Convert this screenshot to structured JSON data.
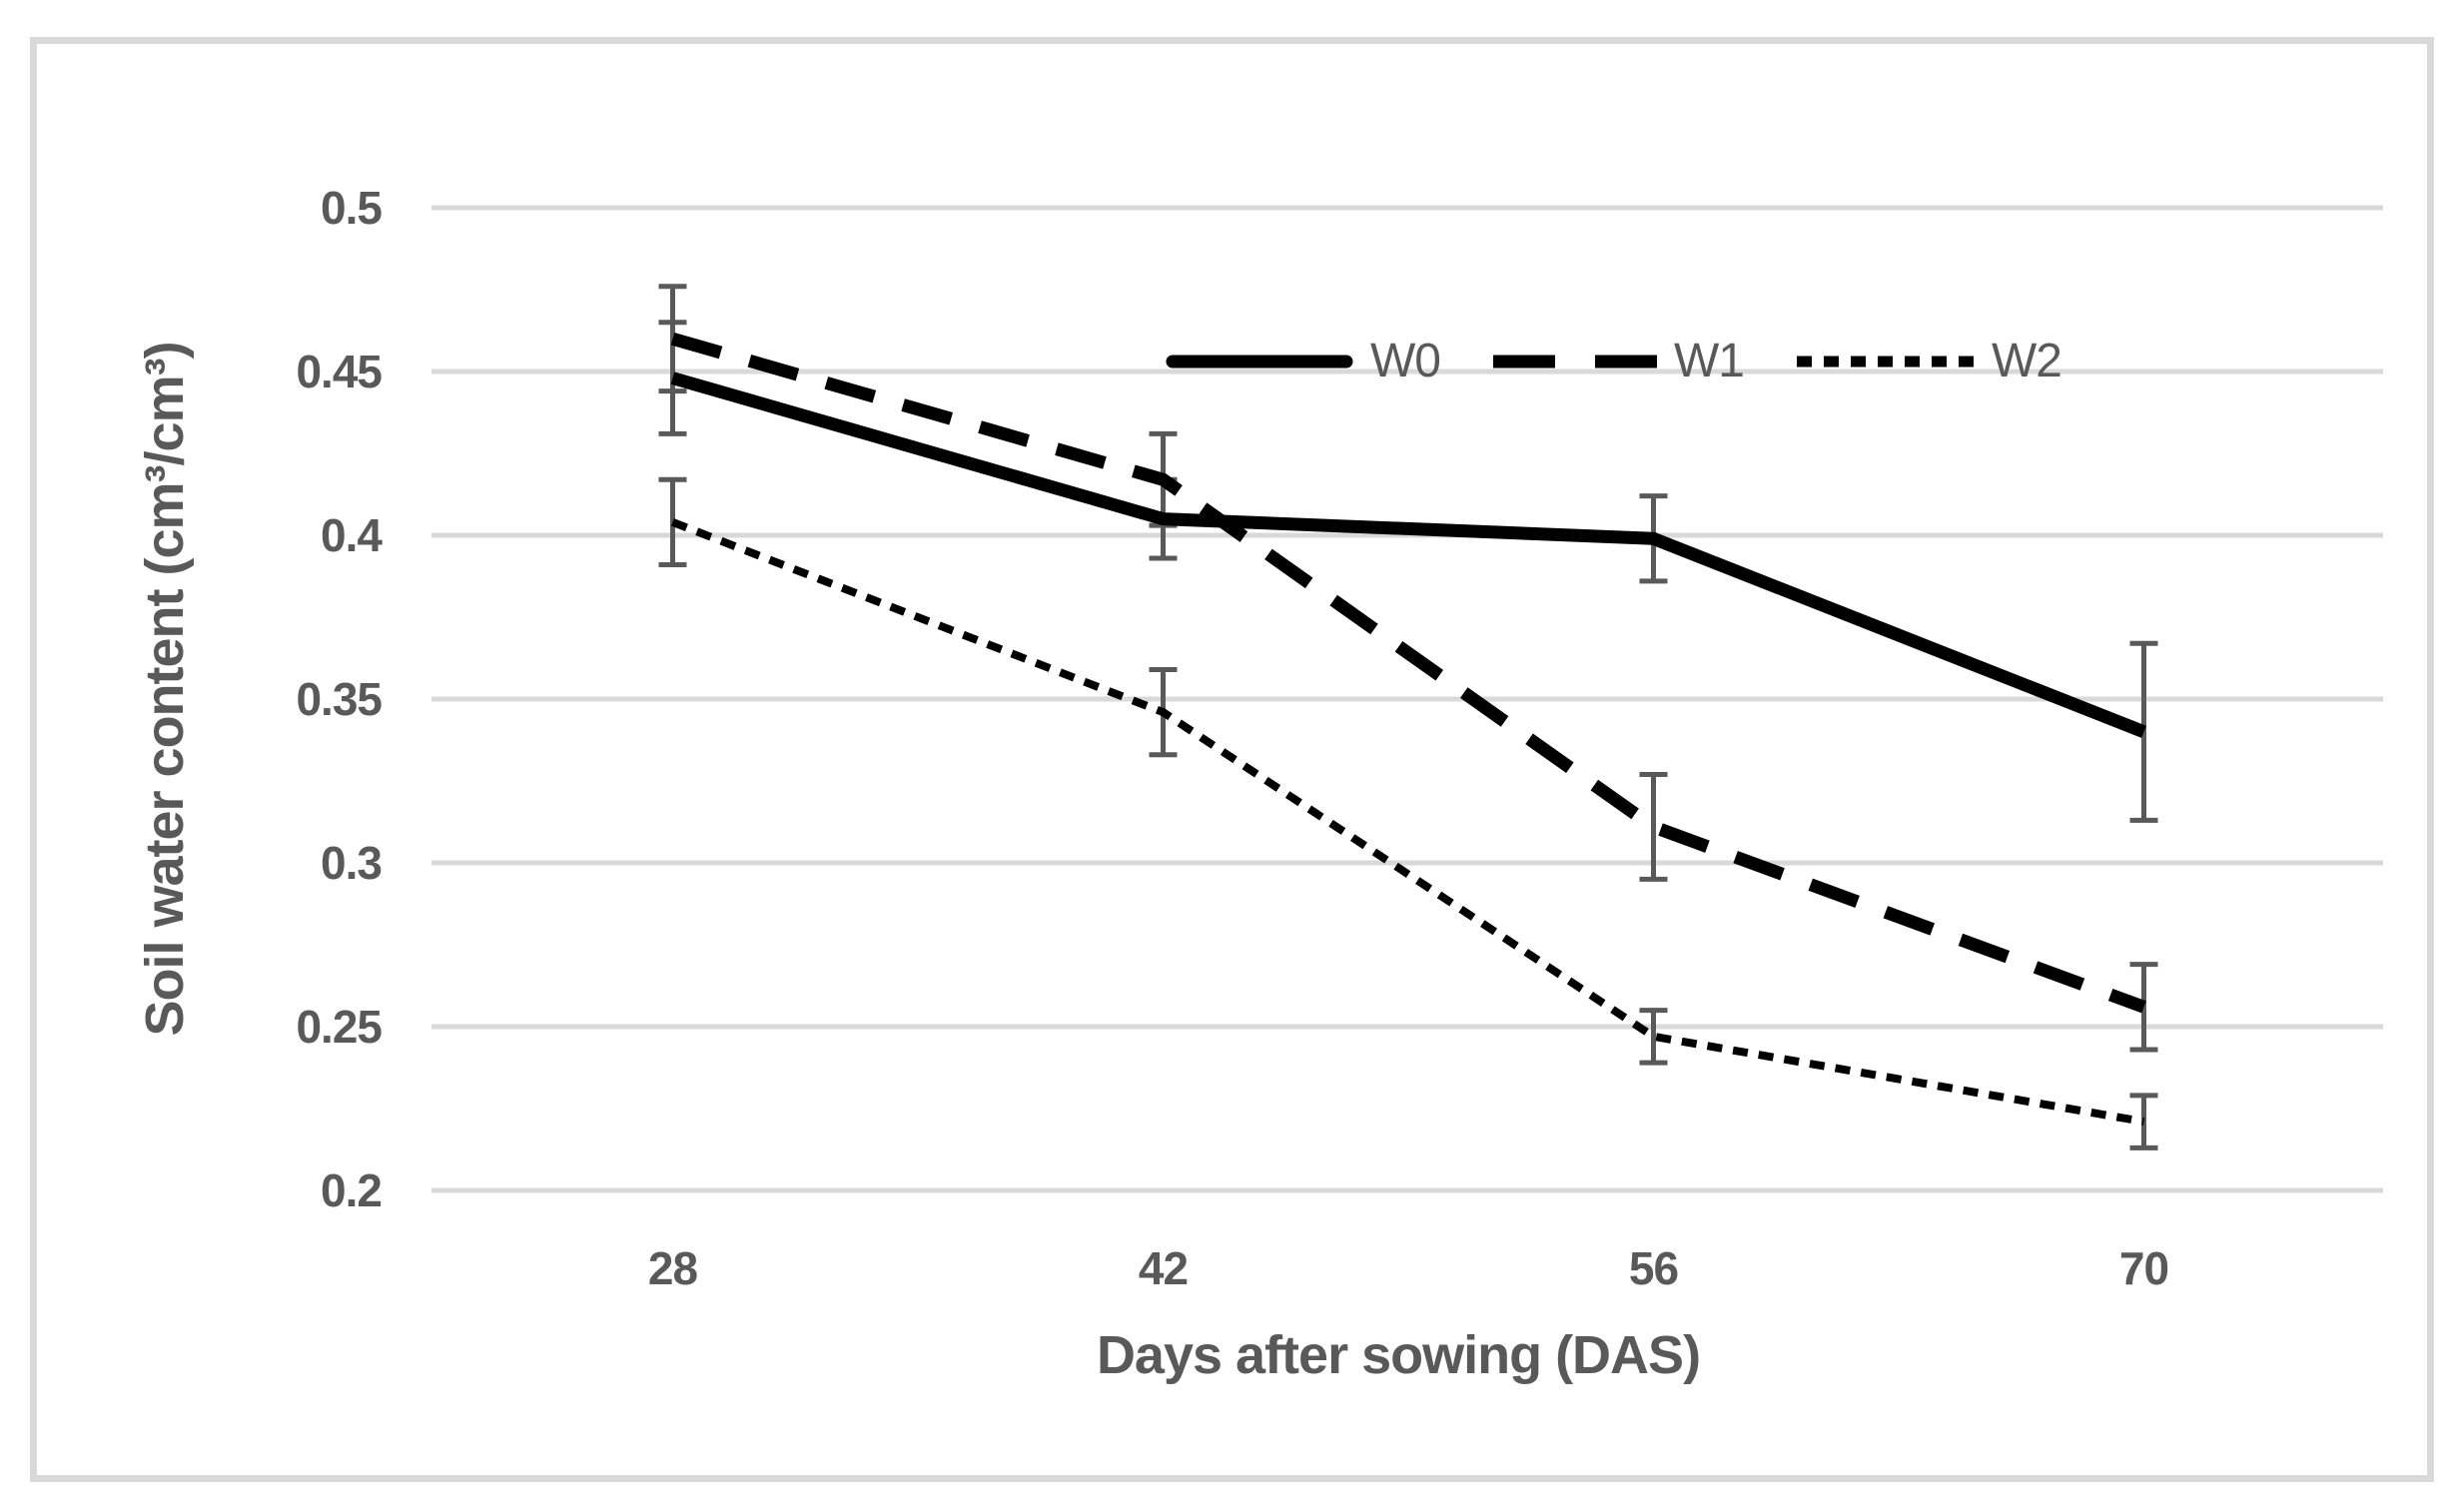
{
  "chart_data": {
    "type": "line",
    "title": "",
    "xlabel": "Days after sowing (DAS)",
    "ylabel": "Soil water content (cm³/cm³)",
    "x": [
      "28",
      "42",
      "56",
      "70"
    ],
    "ylim": [
      0.2,
      0.5
    ],
    "yticks": [
      "0.5",
      "0.45",
      "0.4",
      "0.35",
      "0.3",
      "0.25",
      "0.2"
    ],
    "grid": "horizontal-only",
    "legend_position": "top-center-inside",
    "series": [
      {
        "name": "W0",
        "line_style": "solid",
        "values": [
          0.448,
          0.405,
          0.399,
          0.34
        ],
        "errors": [
          0.017,
          0.012,
          0.013,
          0.027
        ]
      },
      {
        "name": "W1",
        "line_style": "dashed",
        "values": [
          0.46,
          0.417,
          0.311,
          0.256
        ],
        "errors": [
          0.016,
          0.014,
          0.016,
          0.013
        ]
      },
      {
        "name": "W2",
        "line_style": "dotted",
        "values": [
          0.404,
          0.346,
          0.247,
          0.221
        ],
        "errors": [
          0.013,
          0.013,
          0.008,
          0.008
        ]
      }
    ],
    "colors": {
      "series_line": "#000000",
      "error_bar": "#595959",
      "gridline": "#D9D9D9",
      "text": "#595959",
      "frame_border": "#D9D9D9",
      "background": "#FFFFFF"
    }
  }
}
